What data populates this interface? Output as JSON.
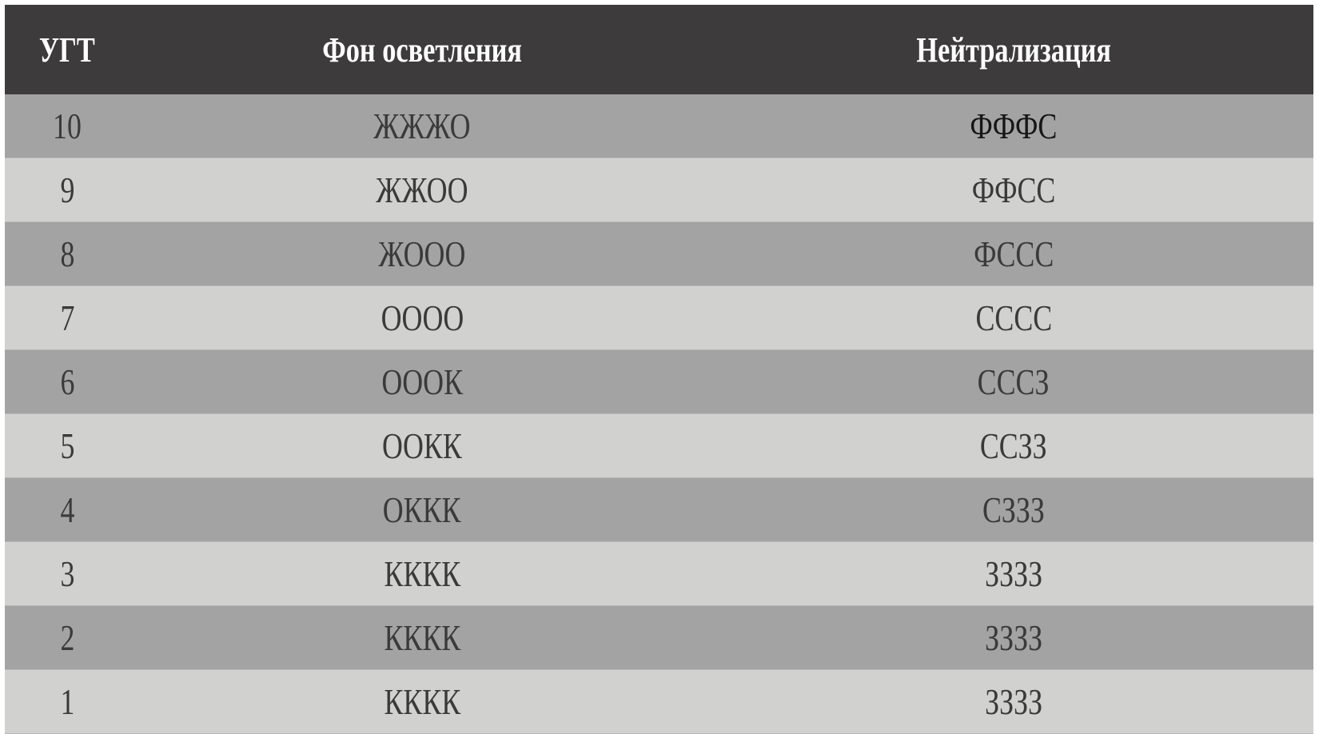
{
  "table": {
    "headers": [
      "УГТ",
      "Фон осветления",
      "Нейтрализация"
    ],
    "rows": [
      [
        "10",
        "ЖЖЖО",
        "ФФФС"
      ],
      [
        "9",
        "ЖЖОО",
        "ФФСС"
      ],
      [
        "8",
        "ЖООО",
        "ФССС"
      ],
      [
        "7",
        "ОООО",
        "СССС"
      ],
      [
        "6",
        "ОООК",
        "СССЗ"
      ],
      [
        "5",
        "ООКК",
        "ССЗЗ"
      ],
      [
        "4",
        "ОККК",
        "СЗЗЗ"
      ],
      [
        "3",
        "КККК",
        "ЗЗЗЗ"
      ],
      [
        "2",
        "КККК",
        "ЗЗЗЗ"
      ],
      [
        "1",
        "КККК",
        "ЗЗЗЗ"
      ]
    ]
  },
  "colors": {
    "header_bg": "#3d3b3c",
    "row_dark": "#a3a3a3",
    "row_light": "#d1d1d0",
    "text": "#3a3a3a"
  }
}
